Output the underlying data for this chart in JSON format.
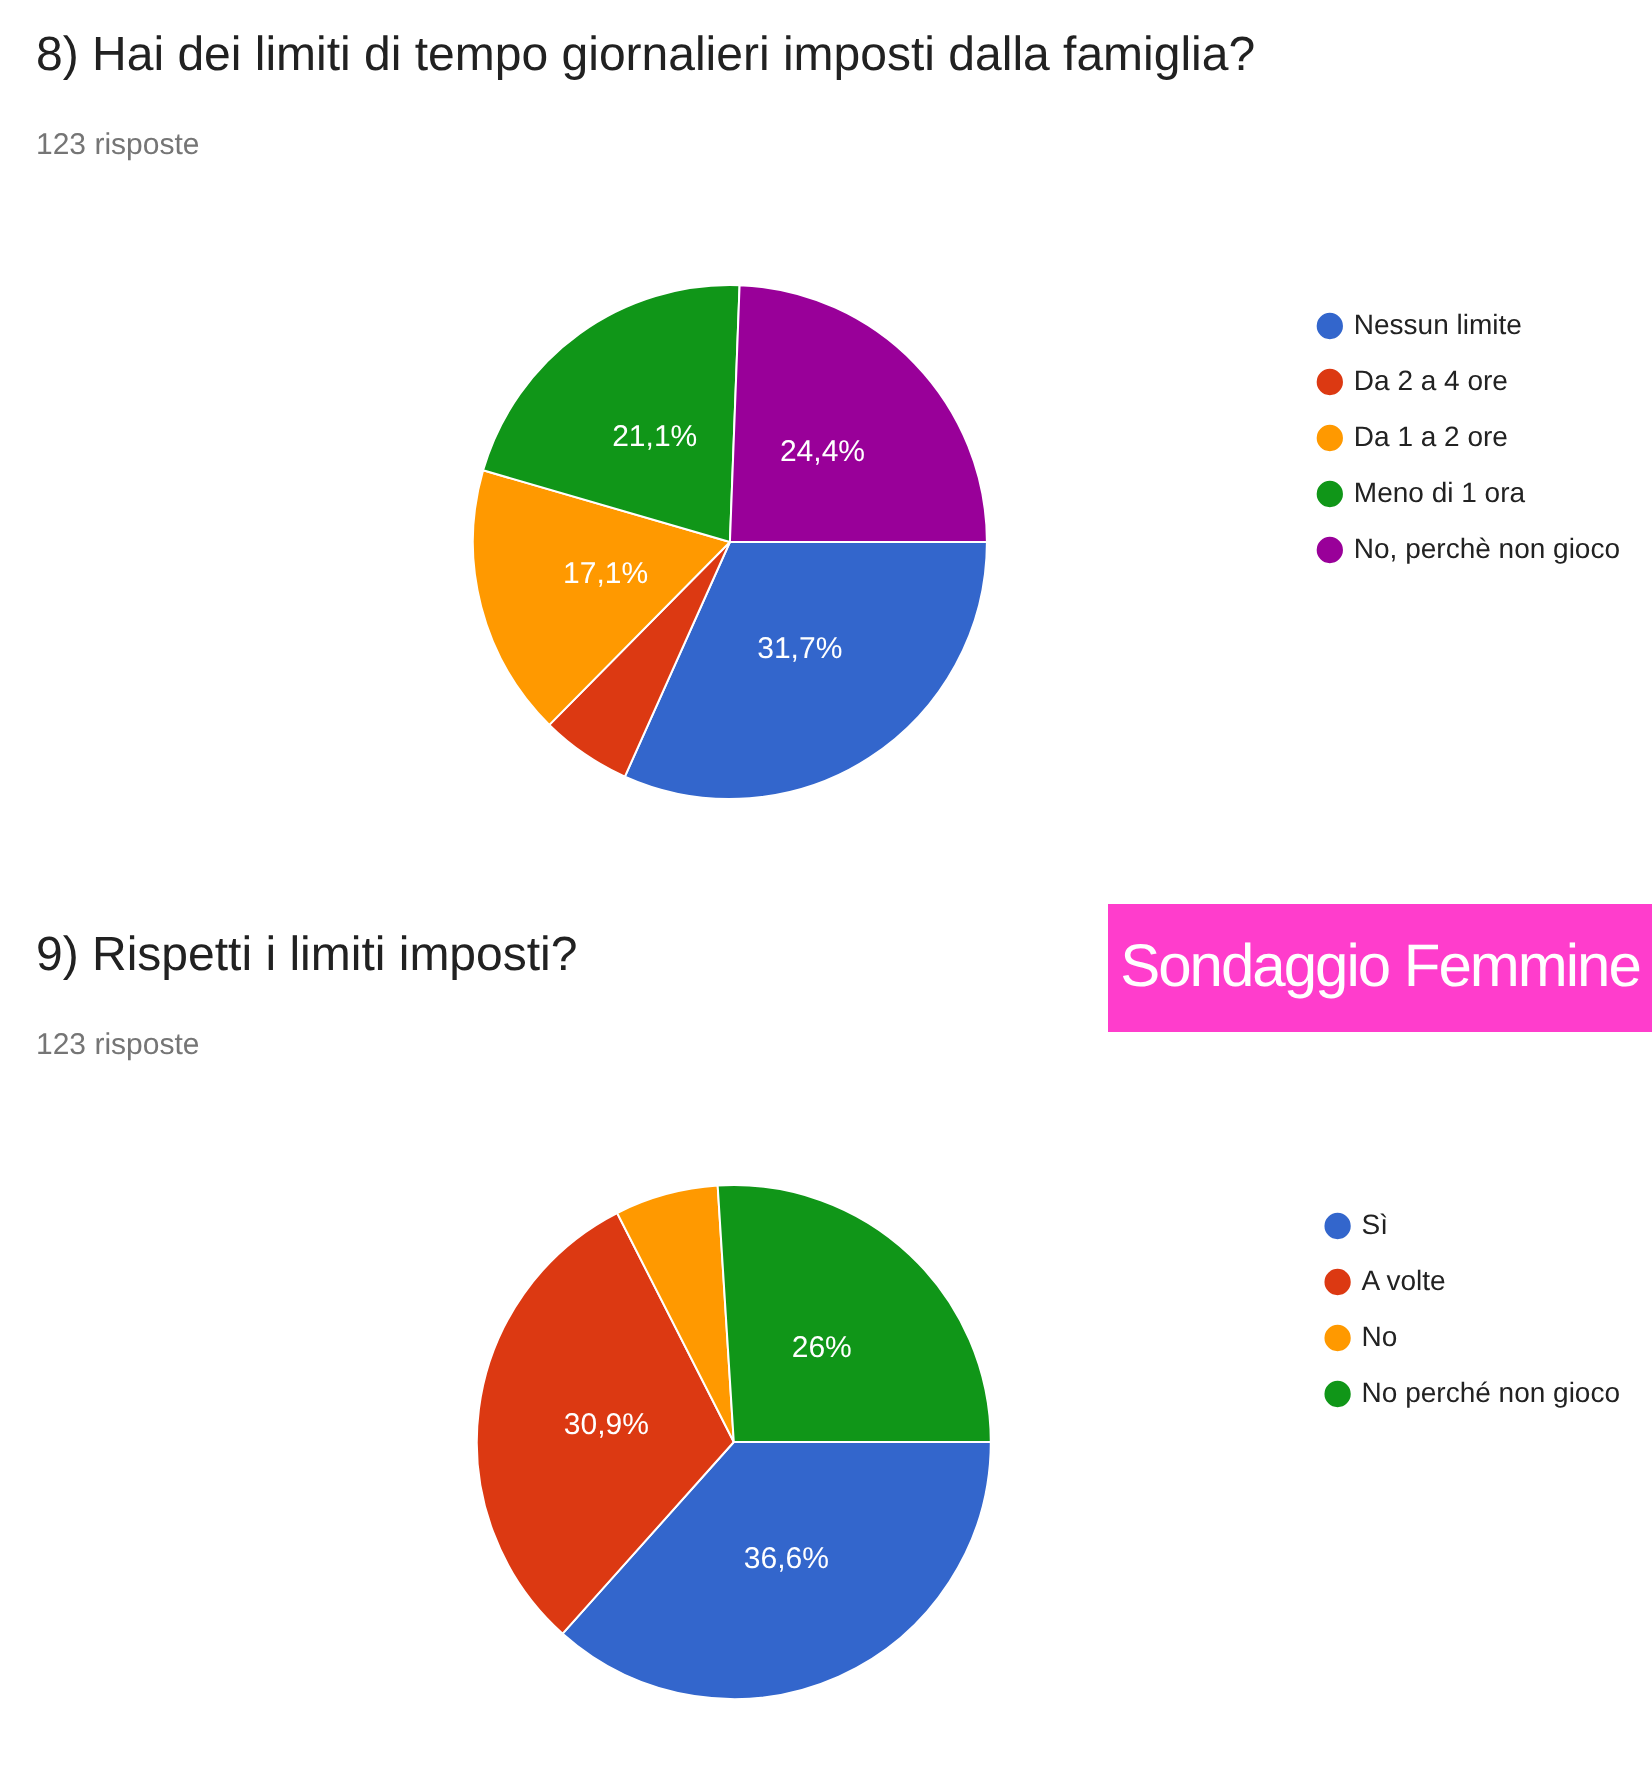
{
  "chart_data": [
    {
      "type": "pie",
      "title": "8) Hai dei limiti di tempo giornalieri imposti dalla famiglia?",
      "subtitle": "123 risposte",
      "categories": [
        "Nessun limite",
        "Da 2 a 4 ore",
        "Da 1 a 2 ore",
        "Meno di 1 ora",
        "No, perchè non gioco"
      ],
      "values": [
        31.7,
        5.7,
        17.1,
        21.1,
        24.4
      ],
      "colors": [
        "#3366cc",
        "#dc3912",
        "#ff9900",
        "#109618",
        "#990099"
      ],
      "value_labels": [
        "31,7%",
        null,
        "17,1%",
        "21,1%",
        "24,4%"
      ],
      "legend": "right"
    },
    {
      "type": "pie",
      "title": "9) Rispetti i limiti imposti?",
      "subtitle": "123 risposte",
      "categories": [
        "Sì",
        "A volte",
        "No",
        "No perché non gioco"
      ],
      "values": [
        36.6,
        30.9,
        6.5,
        26
      ],
      "colors": [
        "#3366cc",
        "#dc3912",
        "#ff9900",
        "#109618"
      ],
      "value_labels": [
        "36,6%",
        "30,9%",
        null,
        "26%"
      ],
      "legend": "right",
      "annotations": [
        "Sondaggio Femmine"
      ]
    }
  ]
}
